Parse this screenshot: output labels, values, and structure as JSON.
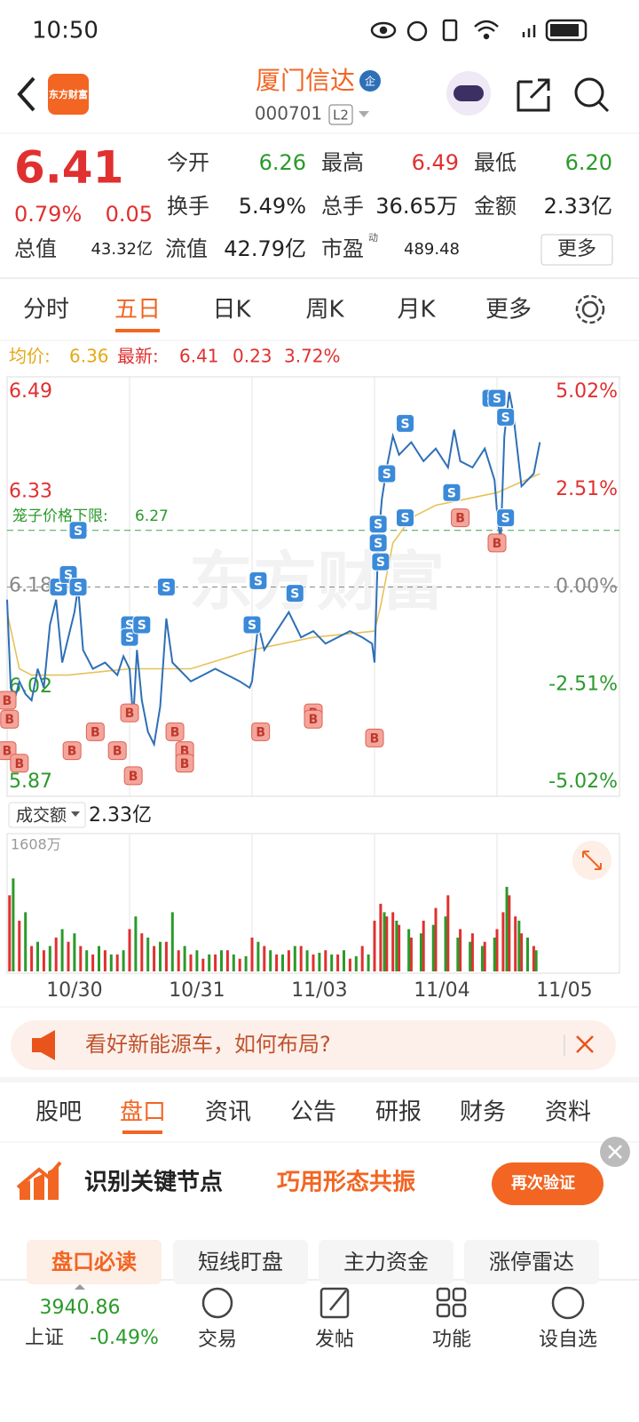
{
  "status_bar": {
    "time": "10:50"
  },
  "header": {
    "logo": "东方财富",
    "title": "厦门信达",
    "badge": "企",
    "code": "000701",
    "level": "L2"
  },
  "quote": {
    "price": "6.41",
    "change_pct": "0.79%",
    "change": "0.05",
    "fields": [
      {
        "label": "今开",
        "value": "6.26"
      },
      {
        "label": "最高",
        "value": "6.49"
      },
      {
        "label": "最低",
        "value": "6.20"
      },
      {
        "label": "换手",
        "value": "5.49%"
      },
      {
        "label": "总手",
        "value": "36.65万"
      },
      {
        "label": "金额",
        "value": "2.33亿"
      },
      {
        "label": "总值",
        "value": "43.32亿"
      },
      {
        "label": "流值",
        "value": "42.79亿"
      },
      {
        "label": "市盈",
        "value": "489.48"
      }
    ],
    "pe_tag": "动",
    "more": "更多"
  },
  "chart_tabs": [
    "分时",
    "五日",
    "日K",
    "周K",
    "月K",
    "更多"
  ],
  "info_line": {
    "avg_label": "均价:",
    "avg": "6.36",
    "latest_label": "最新:",
    "latest": "6.41",
    "change": "0.23",
    "change_pct": "3.72%"
  },
  "chart_data": [
    {
      "type": "line",
      "watermark": "东方财富",
      "xlim": [
        0,
        5
      ],
      "ylim": [
        5.87,
        6.49
      ],
      "yticks": [
        6.49,
        6.33,
        6.18,
        6.02,
        5.87
      ],
      "y2lim": [
        -5.02,
        5.02
      ],
      "y2ticks": [
        {
          "value": 5.02,
          "label": "5.02%"
        },
        {
          "value": 2.51,
          "label": "2.51%"
        },
        {
          "value": 0,
          "label": "0.00%"
        },
        {
          "value": -2.51,
          "label": "-2.51%"
        },
        {
          "value": -5.02,
          "label": "-5.02%"
        }
      ],
      "reference": {
        "label": "笼子价格下限:",
        "value": 6.27
      },
      "series": [
        {
          "color": "#2e6fb7",
          "x": [
            0,
            0.03,
            0.06,
            0.1,
            0.15,
            0.2,
            0.25,
            0.3,
            0.35,
            0.4,
            0.45,
            0.5,
            0.55,
            0.58,
            0.62,
            0.7,
            0.8,
            0.9,
            0.95,
            1.0,
            1.03,
            1.06,
            1.1,
            1.15,
            1.2,
            1.25,
            1.3,
            1.35,
            1.4,
            1.5,
            1.6,
            1.7,
            1.8,
            1.9,
            1.98,
            2.0,
            2.05,
            2.1,
            2.2,
            2.3,
            2.4,
            2.5,
            2.6,
            2.7,
            2.8,
            2.9,
            2.98,
            3.0,
            3.03,
            3.06,
            3.1,
            3.15,
            3.2,
            3.3,
            3.4,
            3.5,
            3.6,
            3.65,
            3.7,
            3.8,
            3.9,
            3.98,
            4.0,
            4.03,
            4.06,
            4.1,
            4.13,
            4.2,
            4.25,
            4.3,
            4.35
          ],
          "values": [
            6.16,
            6.02,
            6.0,
            6.03,
            6.01,
            6.0,
            6.05,
            6.02,
            6.12,
            6.16,
            6.06,
            6.1,
            6.14,
            6.18,
            6.08,
            6.05,
            6.06,
            6.04,
            6.07,
            6.05,
            5.97,
            6.08,
            6.0,
            5.95,
            5.93,
            5.99,
            6.13,
            6.06,
            6.05,
            6.03,
            6.04,
            6.05,
            6.04,
            6.03,
            6.02,
            6.03,
            6.12,
            6.08,
            6.11,
            6.14,
            6.1,
            6.11,
            6.09,
            6.1,
            6.11,
            6.1,
            6.09,
            6.06,
            6.25,
            6.32,
            6.37,
            6.42,
            6.39,
            6.41,
            6.38,
            6.4,
            6.37,
            6.43,
            6.38,
            6.37,
            6.4,
            6.35,
            6.3,
            6.25,
            6.42,
            6.49,
            6.46,
            6.34,
            6.35,
            6.36,
            6.41
          ]
        },
        {
          "color": "#e6c25a",
          "x": [
            0,
            0.1,
            0.2,
            0.5,
            1,
            1.5,
            2,
            2.5,
            3,
            3.05,
            3.15,
            3.3,
            3.5,
            4,
            4.35
          ],
          "values": [
            6.14,
            6.05,
            6.04,
            6.04,
            6.05,
            6.05,
            6.08,
            6.1,
            6.11,
            6.15,
            6.25,
            6.29,
            6.31,
            6.33,
            6.36
          ]
        }
      ],
      "signals": [
        {
          "label": "S",
          "x": 0.42,
          "y": 6.18
        },
        {
          "label": "S",
          "x": 0.5,
          "y": 6.2
        },
        {
          "label": "S",
          "x": 0.58,
          "y": 6.18
        },
        {
          "label": "S",
          "x": 0.58,
          "y": 6.27
        },
        {
          "label": "S",
          "x": 1.0,
          "y": 6.12
        },
        {
          "label": "S",
          "x": 1.0,
          "y": 6.1
        },
        {
          "label": "S",
          "x": 1.1,
          "y": 6.12
        },
        {
          "label": "S",
          "x": 1.3,
          "y": 6.18
        },
        {
          "label": "S",
          "x": 2.05,
          "y": 6.19
        },
        {
          "label": "S",
          "x": 2.0,
          "y": 6.12
        },
        {
          "label": "S",
          "x": 2.35,
          "y": 6.17
        },
        {
          "label": "S",
          "x": 3.03,
          "y": 6.28
        },
        {
          "label": "S",
          "x": 3.03,
          "y": 6.25
        },
        {
          "label": "S",
          "x": 3.05,
          "y": 6.22
        },
        {
          "label": "S",
          "x": 3.1,
          "y": 6.36
        },
        {
          "label": "S",
          "x": 3.25,
          "y": 6.29
        },
        {
          "label": "S",
          "x": 3.25,
          "y": 6.44
        },
        {
          "label": "S",
          "x": 3.63,
          "y": 6.33
        },
        {
          "label": "S",
          "x": 3.95,
          "y": 6.48
        },
        {
          "label": "S",
          "x": 4.0,
          "y": 6.48
        },
        {
          "label": "S",
          "x": 4.07,
          "y": 6.45
        },
        {
          "label": "S",
          "x": 4.07,
          "y": 6.29
        },
        {
          "label": "B",
          "x": 0.0,
          "y": 6.0
        },
        {
          "label": "B",
          "x": 0.02,
          "y": 5.97
        },
        {
          "label": "B",
          "x": 0.0,
          "y": 5.92
        },
        {
          "label": "B",
          "x": 0.1,
          "y": 5.9
        },
        {
          "label": "B",
          "x": 0.53,
          "y": 5.92
        },
        {
          "label": "B",
          "x": 0.72,
          "y": 5.95
        },
        {
          "label": "B",
          "x": 0.9,
          "y": 5.92
        },
        {
          "label": "B",
          "x": 1.0,
          "y": 5.98
        },
        {
          "label": "B",
          "x": 1.03,
          "y": 5.88
        },
        {
          "label": "B",
          "x": 1.37,
          "y": 5.95
        },
        {
          "label": "B",
          "x": 1.45,
          "y": 5.92
        },
        {
          "label": "B",
          "x": 1.45,
          "y": 5.9
        },
        {
          "label": "B",
          "x": 2.07,
          "y": 5.95
        },
        {
          "label": "B",
          "x": 2.5,
          "y": 5.98
        },
        {
          "label": "B",
          "x": 2.5,
          "y": 5.97
        },
        {
          "label": "B",
          "x": 3.0,
          "y": 5.94
        },
        {
          "label": "B",
          "x": 3.7,
          "y": 6.29
        },
        {
          "label": "B",
          "x": 4.0,
          "y": 6.25
        }
      ]
    },
    {
      "type": "bar",
      "label": "成交额",
      "total": "2.33亿",
      "xlim": [
        0,
        5
      ],
      "ylim": [
        0,
        1608
      ],
      "yticks": [
        {
          "value": 1608,
          "label": "1608万"
        }
      ],
      "xticks": [
        {
          "value": 0.55,
          "label": "10/30"
        },
        {
          "value": 1.55,
          "label": "10/31"
        },
        {
          "value": 2.55,
          "label": "11/03"
        },
        {
          "value": 3.55,
          "label": "11/04"
        },
        {
          "value": 4.55,
          "label": "11/05"
        }
      ],
      "series": [
        {
          "color": "#e03030",
          "x": [
            0.02,
            0.1,
            0.2,
            0.3,
            0.4,
            0.5,
            0.6,
            0.7,
            0.8,
            0.9,
            1.0,
            1.1,
            1.2,
            1.3,
            1.4,
            1.5,
            1.6,
            1.7,
            1.8,
            1.9,
            2.0,
            2.1,
            2.2,
            2.3,
            2.4,
            2.5,
            2.6,
            2.7,
            2.8,
            2.9,
            3.0,
            3.05,
            3.1,
            3.15,
            3.2,
            3.3,
            3.4,
            3.5,
            3.6,
            3.7,
            3.8,
            3.9,
            4.0,
            4.05,
            4.1,
            4.15,
            4.2,
            4.3
          ],
          "values": [
            900,
            600,
            300,
            250,
            400,
            350,
            300,
            200,
            250,
            200,
            500,
            450,
            300,
            350,
            250,
            200,
            150,
            200,
            250,
            150,
            400,
            300,
            200,
            250,
            300,
            200,
            250,
            200,
            150,
            300,
            600,
            800,
            650,
            700,
            550,
            400,
            600,
            750,
            900,
            500,
            450,
            350,
            500,
            700,
            900,
            650,
            450,
            300
          ]
        },
        {
          "color": "#2a9a2a",
          "x": [
            0.05,
            0.15,
            0.25,
            0.35,
            0.45,
            0.55,
            0.65,
            0.75,
            0.85,
            0.95,
            1.05,
            1.15,
            1.25,
            1.35,
            1.45,
            1.55,
            1.65,
            1.75,
            1.85,
            1.95,
            2.05,
            2.15,
            2.25,
            2.35,
            2.45,
            2.55,
            2.65,
            2.75,
            2.85,
            2.95,
            3.08,
            3.18,
            3.28,
            3.38,
            3.48,
            3.58,
            3.68,
            3.78,
            3.88,
            3.98,
            4.08,
            4.18,
            4.25,
            4.32
          ],
          "values": [
            1100,
            700,
            350,
            300,
            500,
            450,
            250,
            300,
            200,
            250,
            650,
            400,
            350,
            700,
            300,
            250,
            200,
            250,
            200,
            180,
            350,
            250,
            200,
            300,
            250,
            220,
            200,
            250,
            180,
            200,
            700,
            600,
            500,
            450,
            550,
            650,
            400,
            350,
            300,
            400,
            1000,
            600,
            400,
            250
          ]
        }
      ]
    }
  ],
  "banner": {
    "text": "看好新能源车，如何布局?"
  },
  "detail_tabs": [
    "股吧",
    "盘口",
    "资讯",
    "公告",
    "研报",
    "财务",
    "资料"
  ],
  "promo": {
    "title": "识别关键节点",
    "subtitle": "巧用形态共振",
    "button": "再次验证"
  },
  "sub_tabs": [
    "盘口必读",
    "短线盯盘",
    "主力资金",
    "涨停雷达"
  ],
  "bottom_nav": {
    "index_value": "3940.86",
    "index_name": "上证",
    "index_change": "-0.49%",
    "items": [
      "交易",
      "发帖",
      "功能",
      "设自选"
    ]
  }
}
